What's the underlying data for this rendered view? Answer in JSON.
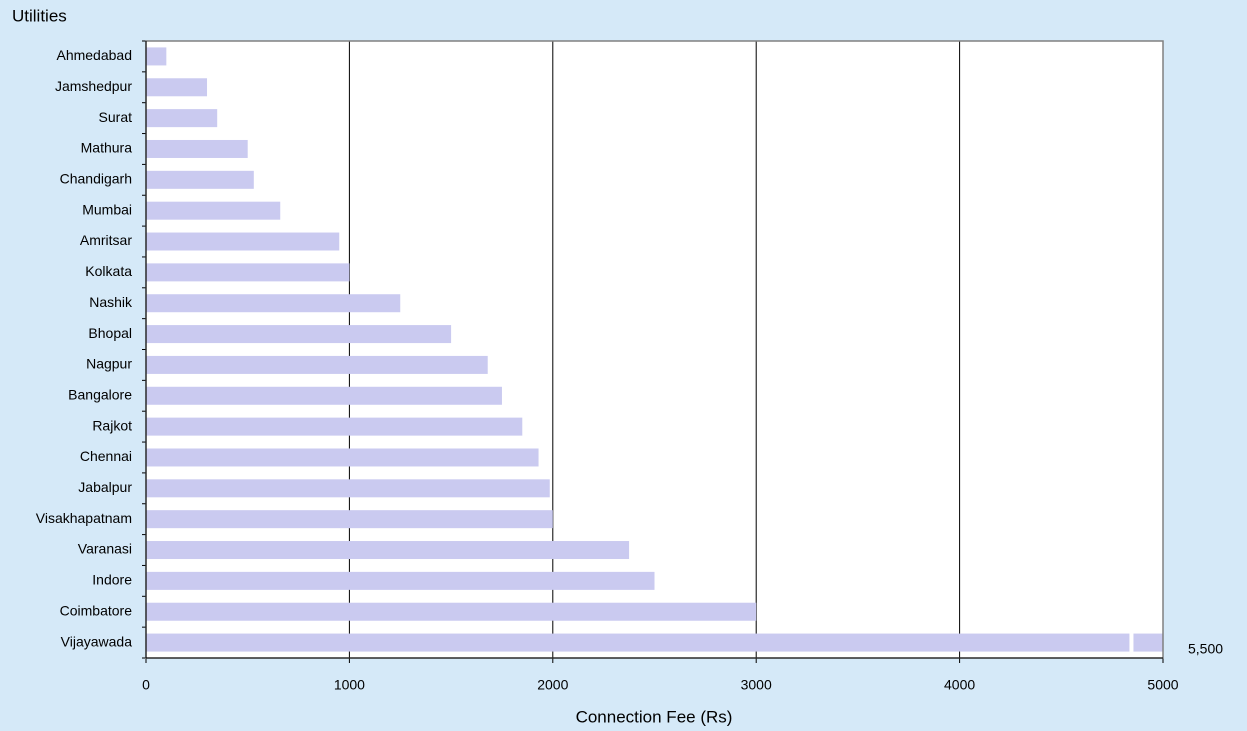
{
  "chart_data": {
    "type": "hbar",
    "title": "Utilities",
    "x_label": "Connection Fee (Rs)",
    "categories": [
      "Ahmedabad",
      "Jamshedpur",
      "Surat",
      "Mathura",
      "Chandigarh",
      "Mumbai",
      "Amritsar",
      "Kolkata",
      "Nashik",
      "Bhopal",
      "Nagpur",
      "Bangalore",
      "Rajkot",
      "Chennai",
      "Jabalpur",
      "Visakhapatnam",
      "Varanasi",
      "Indore",
      "Coimbatore",
      "Vijayawada"
    ],
    "values": [
      100,
      300,
      350,
      500,
      530,
      660,
      950,
      1000,
      1250,
      1500,
      1680,
      1750,
      1850,
      1930,
      1985,
      2000,
      2375,
      2500,
      3000,
      5500
    ],
    "value_labels": [
      null,
      null,
      null,
      null,
      null,
      null,
      null,
      null,
      null,
      null,
      null,
      null,
      null,
      null,
      null,
      null,
      null,
      null,
      null,
      "5,500"
    ],
    "color": "#cacaf0",
    "xlim": [
      0,
      5000
    ],
    "xticks": [
      0,
      1000,
      2000,
      3000,
      4000,
      5000
    ],
    "grid": true
  }
}
